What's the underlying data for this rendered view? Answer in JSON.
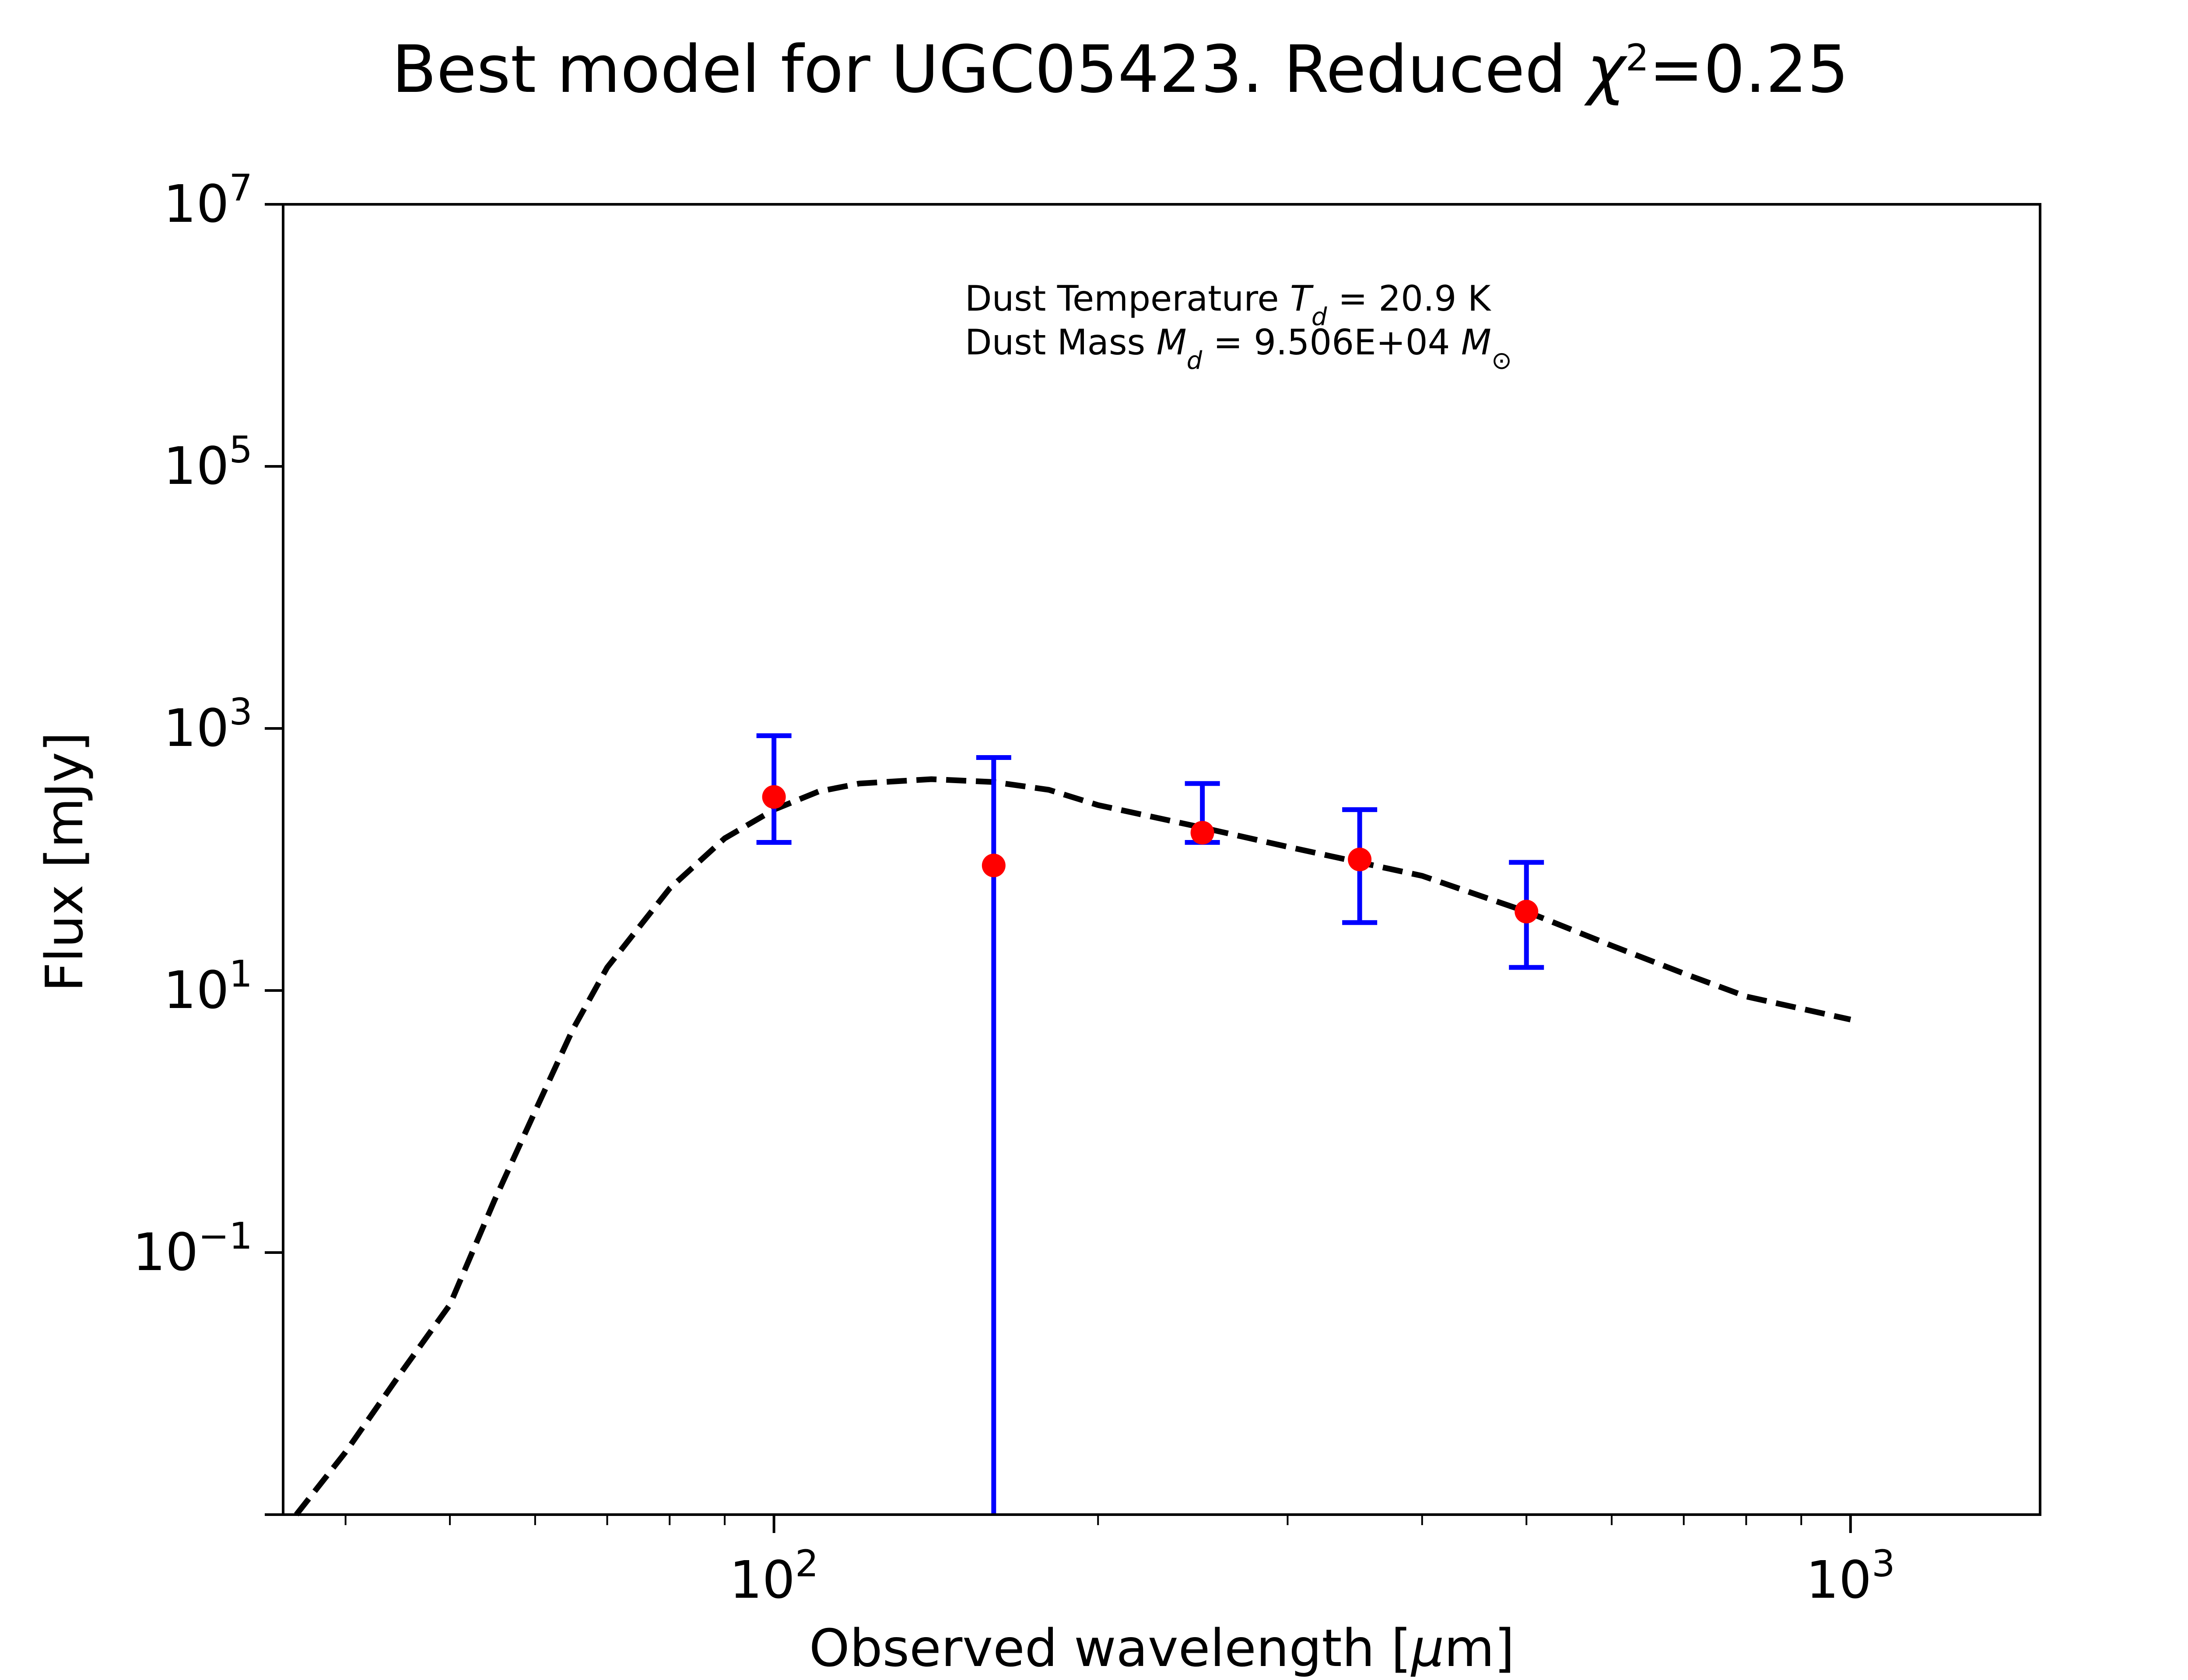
{
  "chart_data": {
    "type": "scatter",
    "title_prefix": "Best model for UGC05423. Reduced ",
    "title_chi_symbol": "χ",
    "title_chi_exponent": "2",
    "title_value": "=0.25",
    "xlabel_text": "Observed wavelength [",
    "xlabel_unit_symbol": "μ",
    "xlabel_unit_rest": "m]",
    "ylabel": "Flux [mJy]",
    "x_scale": "log",
    "y_scale": "log",
    "xlim": [
      35,
      1500
    ],
    "ylim": [
      0.001,
      10000000
    ],
    "x_major_ticks": [
      {
        "value": 100,
        "base": "10",
        "exp": "2"
      },
      {
        "value": 1000,
        "base": "10",
        "exp": "3"
      }
    ],
    "y_major_ticks": [
      {
        "value": 0.1,
        "base": "10",
        "exp": "−1"
      },
      {
        "value": 10,
        "base": "10",
        "exp": "1"
      },
      {
        "value": 1000,
        "base": "10",
        "exp": "3"
      },
      {
        "value": 100000,
        "base": "10",
        "exp": "5"
      },
      {
        "value": 10000000,
        "base": "10",
        "exp": "7"
      }
    ],
    "annotation": {
      "line1_prefix": "Dust Temperature ",
      "line1_symbol": "T",
      "line1_subscript": "d",
      "line1_value": " = 20.9 K",
      "line2_prefix": "Dust Mass ",
      "line2_symbol": "M",
      "line2_subscript": "d",
      "line2_value": " = 9.506E+04 ",
      "line2_unit_symbol": "M",
      "line2_unit_subscript": "⊙"
    },
    "series": [
      {
        "type": "scatter_errorbar",
        "color": "#ff0000",
        "errorbar_color": "#0000ff",
        "points": [
          {
            "x": 100,
            "y": 300,
            "ylow": 135,
            "yhigh": 880
          },
          {
            "x": 160,
            "y": 90,
            "ylow": 0.001,
            "yhigh": 600
          },
          {
            "x": 250,
            "y": 160,
            "ylow": 135,
            "yhigh": 380
          },
          {
            "x": 350,
            "y": 100,
            "ylow": 33,
            "yhigh": 240
          },
          {
            "x": 500,
            "y": 40,
            "ylow": 15,
            "yhigh": 95
          }
        ]
      },
      {
        "type": "line",
        "style": "dashed",
        "color": "#000000",
        "x": [
          36,
          40,
          45,
          50,
          55,
          60,
          65,
          70,
          80,
          90,
          100,
          110,
          120,
          140,
          160,
          180,
          200,
          250,
          300,
          350,
          400,
          500,
          600,
          700,
          800,
          1000
        ],
        "y": [
          0.001,
          0.003,
          0.012,
          0.04,
          0.25,
          1.2,
          5,
          15,
          60,
          145,
          240,
          330,
          380,
          410,
          390,
          340,
          260,
          175,
          125,
          95,
          75,
          40,
          22,
          13.5,
          9,
          6
        ]
      }
    ]
  }
}
